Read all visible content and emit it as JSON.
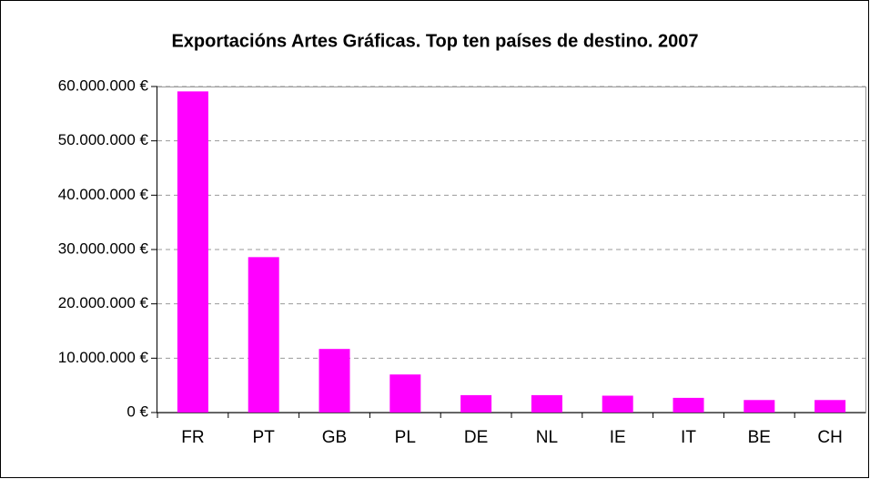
{
  "chart_data": {
    "type": "bar",
    "title": "Exportacións Artes Gráficas. Top ten países de destino. 2007",
    "categories": [
      "FR",
      "PT",
      "GB",
      "PL",
      "DE",
      "NL",
      "IE",
      "IT",
      "BE",
      "CH"
    ],
    "values": [
      59100000,
      28600000,
      11700000,
      7000000,
      3200000,
      3200000,
      3100000,
      2700000,
      2300000,
      2300000
    ],
    "color": "#ff00ff",
    "ylim": [
      0,
      60000000
    ],
    "yticks": [
      {
        "value": 0,
        "label": "0 €"
      },
      {
        "value": 10000000,
        "label": "10.000.000 €"
      },
      {
        "value": 20000000,
        "label": "20.000.000 €"
      },
      {
        "value": 30000000,
        "label": "30.000.000 €"
      },
      {
        "value": 40000000,
        "label": "40.000.000 €"
      },
      {
        "value": 50000000,
        "label": "50.000.000 €"
      },
      {
        "value": 60000000,
        "label": "60.000.000 €"
      }
    ],
    "grid": true
  }
}
